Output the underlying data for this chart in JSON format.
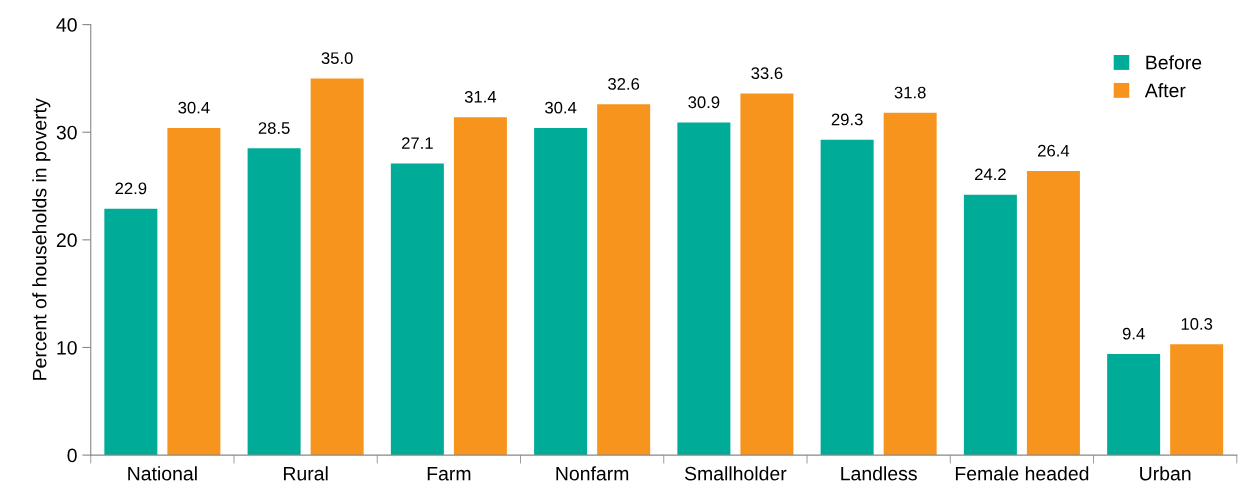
{
  "chart_data": {
    "type": "bar",
    "ylabel": "Percent of households in poverty",
    "categories": [
      "National",
      "Rural",
      "Farm",
      "Nonfarm",
      "Smallholder",
      "Landless",
      "Female headed",
      "Urban"
    ],
    "series": [
      {
        "name": "Before",
        "color": "#00ab98",
        "values": [
          22.9,
          28.5,
          27.1,
          30.4,
          30.9,
          29.3,
          24.2,
          9.4
        ],
        "value_labels": [
          "22.9",
          "28.5",
          "27.1",
          "30.4",
          "30.9",
          "29.3",
          "24.2",
          "9.4"
        ]
      },
      {
        "name": "After",
        "color": "#f7941d",
        "values": [
          30.4,
          35.0,
          31.4,
          32.6,
          33.6,
          31.8,
          26.4,
          10.3
        ],
        "value_labels": [
          "30.4",
          "35.0",
          "31.4",
          "32.6",
          "33.6",
          "31.8",
          "26.4",
          "10.3"
        ]
      }
    ],
    "ylim": [
      0,
      40
    ],
    "yticks": [
      0,
      10,
      20,
      30,
      40
    ],
    "grid": false,
    "legend": "top right"
  }
}
